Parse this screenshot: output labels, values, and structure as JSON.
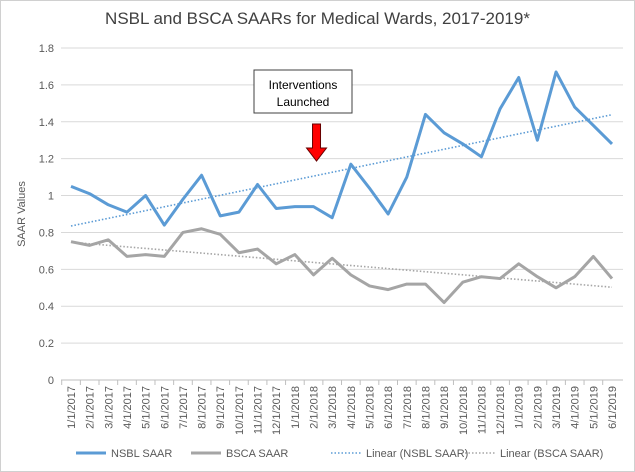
{
  "chart_data": {
    "type": "line",
    "title": "NSBL and BSCA SAARs for Medical Wards, 2017-2019*",
    "xlabel": "",
    "ylabel": "SAAR Values",
    "ylim": [
      0,
      1.8
    ],
    "yticks": [
      "0",
      "0.2",
      "0.4",
      "0.6",
      "0.8",
      "1",
      "1.2",
      "1.4",
      "1.6",
      "1.8"
    ],
    "grid": true,
    "legend": "bottom",
    "categories": [
      "1/1/2017",
      "2/1/2017",
      "3/1/2017",
      "4/1/2017",
      "5/1/2017",
      "6/1/2017",
      "7/1/2017",
      "8/1/2017",
      "9/1/2017",
      "10/1/2017",
      "11/1/2017",
      "12/1/2017",
      "1/1/2018",
      "2/1/2018",
      "3/1/2018",
      "4/1/2018",
      "5/1/2018",
      "6/1/2018",
      "7/1/2018",
      "8/1/2018",
      "9/1/2018",
      "10/1/2018",
      "11/1/2018",
      "12/1/2018",
      "1/1/2019",
      "2/1/2019",
      "3/1/2019",
      "4/1/2019",
      "5/1/2019",
      "6/1/2019"
    ],
    "series": [
      {
        "name": "NSBL SAAR",
        "color": "#5b9bd5",
        "values": [
          1.05,
          1.01,
          0.95,
          0.91,
          1.0,
          0.84,
          0.98,
          1.11,
          0.89,
          0.91,
          1.06,
          0.93,
          0.94,
          0.94,
          0.88,
          1.17,
          1.04,
          0.9,
          1.1,
          1.44,
          1.34,
          1.28,
          1.21,
          1.47,
          1.64,
          1.3,
          1.67,
          1.48,
          1.38,
          1.28
        ]
      },
      {
        "name": "BSCA SAAR",
        "color": "#a5a5a5",
        "values": [
          0.75,
          0.73,
          0.76,
          0.67,
          0.68,
          0.67,
          0.8,
          0.82,
          0.79,
          0.69,
          0.71,
          0.63,
          0.68,
          0.57,
          0.66,
          0.57,
          0.51,
          0.49,
          0.52,
          0.52,
          0.42,
          0.53,
          0.56,
          0.55,
          0.63,
          0.56,
          0.5,
          0.56,
          0.67,
          0.55
        ]
      }
    ],
    "trendlines": [
      {
        "name": "Linear (NSBL SAAR)",
        "color": "#5b9bd5",
        "of": 0
      },
      {
        "name": "Linear (BSCA SAAR)",
        "color": "#a5a5a5",
        "of": 1
      }
    ],
    "annotation": {
      "line1": "Interventions",
      "line2": "Launched",
      "at": "2/1/2018",
      "arrow_color": "#ff0000"
    }
  }
}
